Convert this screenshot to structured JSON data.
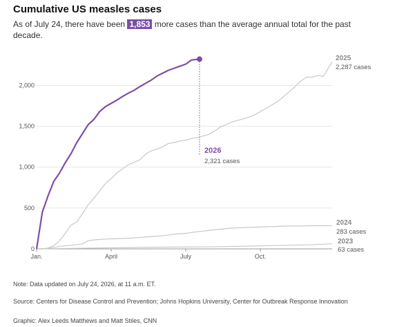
{
  "chart_data": {
    "type": "line",
    "title": "Cumulative US measles cases",
    "subtitle": [
      "As of July 24, there have been",
      "1,853",
      "more cases than the average annual total for the past decade."
    ],
    "xlim": [
      0,
      52
    ],
    "xticks": [
      {
        "value": 0,
        "label": "Jan."
      },
      {
        "value": 13,
        "label": "April"
      },
      {
        "value": 26,
        "label": "July"
      },
      {
        "value": 39,
        "label": "Oct."
      }
    ],
    "ylim": [
      0,
      2300
    ],
    "yticks": [
      0,
      500,
      {
        "value": 1000,
        "label": "1,000"
      },
      {
        "value": 1500,
        "label": "1,500"
      },
      {
        "value": 2000,
        "label": "2,000"
      }
    ],
    "grid": true,
    "series": [
      {
        "name": "2023",
        "color": "#c8c8c8",
        "x": [
          0,
          10,
          20,
          30,
          38,
          44,
          48,
          51.5
        ],
        "values": [
          0,
          10,
          20,
          25,
          35,
          45,
          50,
          63
        ],
        "value_labels": [
          null,
          null,
          null,
          null,
          null,
          null,
          null,
          "63 cases"
        ]
      },
      {
        "name": "2024",
        "color": "#c8c8c8",
        "x": [
          0,
          2,
          4,
          6,
          7,
          8,
          9,
          10,
          12,
          14,
          16,
          18,
          20,
          22,
          24,
          26,
          28,
          30,
          32,
          34,
          36,
          38,
          40,
          42,
          44,
          46,
          48,
          51.5
        ],
        "values": [
          0,
          5,
          30,
          45,
          50,
          60,
          100,
          110,
          120,
          125,
          130,
          140,
          150,
          160,
          180,
          190,
          210,
          225,
          240,
          255,
          260,
          265,
          270,
          275,
          280,
          280,
          283,
          283
        ],
        "value_labels": [
          null,
          null,
          null,
          null,
          null,
          null,
          null,
          null,
          null,
          null,
          null,
          null,
          null,
          null,
          null,
          null,
          null,
          null,
          null,
          null,
          null,
          null,
          null,
          null,
          null,
          null,
          null,
          "283 cases"
        ]
      },
      {
        "name": "2025",
        "color": "#c8c8c8",
        "x": [
          0,
          1,
          2,
          3,
          4,
          5,
          6,
          7,
          8,
          9,
          10,
          11,
          12,
          13,
          14,
          15,
          16,
          17,
          18,
          19,
          20,
          21,
          22,
          23,
          24,
          25,
          26,
          27,
          28,
          29,
          30,
          31,
          32,
          33,
          34,
          35,
          36,
          37,
          38,
          39,
          40,
          41,
          42,
          43,
          44,
          45,
          46,
          47,
          48,
          49,
          50,
          51.5
        ],
        "values": [
          0,
          0,
          10,
          40,
          100,
          190,
          290,
          330,
          430,
          540,
          620,
          710,
          800,
          860,
          930,
          980,
          1030,
          1060,
          1090,
          1160,
          1200,
          1220,
          1250,
          1290,
          1300,
          1320,
          1330,
          1350,
          1360,
          1380,
          1400,
          1440,
          1490,
          1520,
          1550,
          1570,
          1590,
          1610,
          1640,
          1680,
          1720,
          1760,
          1800,
          1860,
          1920,
          1980,
          2050,
          2100,
          2100,
          2120,
          2110,
          2287
        ],
        "value_labels": [
          null,
          null,
          null,
          null,
          null,
          null,
          null,
          null,
          null,
          null,
          null,
          null,
          null,
          null,
          null,
          null,
          null,
          null,
          null,
          null,
          null,
          null,
          null,
          null,
          null,
          null,
          null,
          null,
          null,
          null,
          null,
          null,
          null,
          null,
          null,
          null,
          null,
          null,
          null,
          null,
          null,
          null,
          null,
          null,
          null,
          null,
          null,
          null,
          null,
          null,
          null,
          "2,287 cases"
        ]
      },
      {
        "name": "2026",
        "color": "#7b4fa6",
        "x": [
          0,
          1,
          2,
          3,
          4,
          5,
          6,
          7,
          8,
          9,
          10,
          11,
          12,
          13,
          14,
          15,
          16,
          17,
          18,
          19,
          20,
          21,
          22,
          23,
          24,
          25,
          26,
          27,
          28.4
        ],
        "values": [
          0,
          450,
          650,
          827,
          928,
          1055,
          1165,
          1300,
          1410,
          1520,
          1585,
          1680,
          1740,
          1780,
          1820,
          1865,
          1905,
          1940,
          1985,
          2025,
          2065,
          2115,
          2150,
          2185,
          2210,
          2235,
          2260,
          2310,
          2321
        ],
        "value_labels": [
          null,
          null,
          null,
          null,
          null,
          null,
          null,
          null,
          null,
          null,
          null,
          null,
          null,
          null,
          null,
          null,
          null,
          null,
          null,
          null,
          null,
          null,
          null,
          null,
          null,
          null,
          null,
          null,
          "2,321 cases"
        ]
      }
    ],
    "note": "Note: Data updated on July 24, 2026, at 11 a.m. ET.",
    "source": "Source: Centers for Disease Control and Prevention; Johns Hopkins University, Center for Outbreak Response Innovation",
    "credit": "Graphic: Alex Leeds Matthews and Matt Stiles, CNN"
  }
}
